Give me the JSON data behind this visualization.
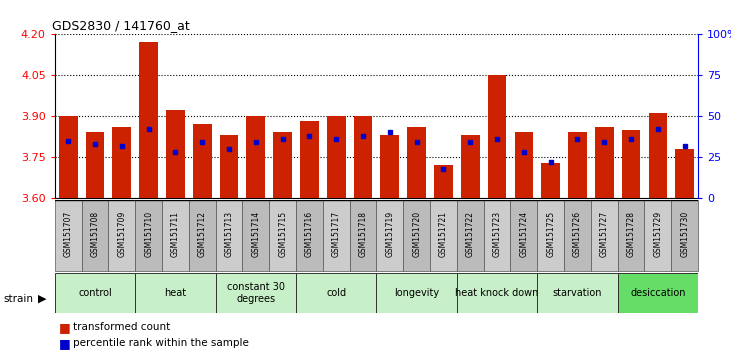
{
  "title": "GDS2830 / 141760_at",
  "samples": [
    "GSM151707",
    "GSM151708",
    "GSM151709",
    "GSM151710",
    "GSM151711",
    "GSM151712",
    "GSM151713",
    "GSM151714",
    "GSM151715",
    "GSM151716",
    "GSM151717",
    "GSM151718",
    "GSM151719",
    "GSM151720",
    "GSM151721",
    "GSM151722",
    "GSM151723",
    "GSM151724",
    "GSM151725",
    "GSM151726",
    "GSM151727",
    "GSM151728",
    "GSM151729",
    "GSM151730"
  ],
  "red_values": [
    3.9,
    3.84,
    3.86,
    4.17,
    3.92,
    3.87,
    3.83,
    3.9,
    3.84,
    3.88,
    3.9,
    3.9,
    3.83,
    3.86,
    3.72,
    3.83,
    4.05,
    3.84,
    3.73,
    3.84,
    3.86,
    3.85,
    3.91,
    3.78
  ],
  "blue_percentile": [
    35,
    33,
    32,
    42,
    28,
    34,
    30,
    34,
    36,
    38,
    36,
    38,
    40,
    34,
    18,
    34,
    36,
    28,
    22,
    36,
    34,
    36,
    42,
    32
  ],
  "groups": [
    {
      "label": "control",
      "start": 0,
      "end": 3,
      "color": "#c8f0c8"
    },
    {
      "label": "heat",
      "start": 3,
      "end": 6,
      "color": "#c8f0c8"
    },
    {
      "label": "constant 30\ndegrees",
      "start": 6,
      "end": 9,
      "color": "#c8f0c8"
    },
    {
      "label": "cold",
      "start": 9,
      "end": 12,
      "color": "#c8f0c8"
    },
    {
      "label": "longevity",
      "start": 12,
      "end": 15,
      "color": "#c8f0c8"
    },
    {
      "label": "heat knock down",
      "start": 15,
      "end": 18,
      "color": "#c8f0c8"
    },
    {
      "label": "starvation",
      "start": 18,
      "end": 21,
      "color": "#c8f0c8"
    },
    {
      "label": "desiccation",
      "start": 21,
      "end": 24,
      "color": "#66dd66"
    }
  ],
  "ylim_left": [
    3.6,
    4.2
  ],
  "yticks_left": [
    3.6,
    3.75,
    3.9,
    4.05,
    4.2
  ],
  "ylim_right": [
    0,
    100
  ],
  "yticks_right": [
    0,
    25,
    50,
    75,
    100
  ],
  "bar_color": "#cc2200",
  "dot_color": "#0000cc",
  "bar_width": 0.7,
  "base_value": 3.6,
  "sample_box_color": "#cccccc",
  "sample_box_alt_color": "#bbbbbb"
}
